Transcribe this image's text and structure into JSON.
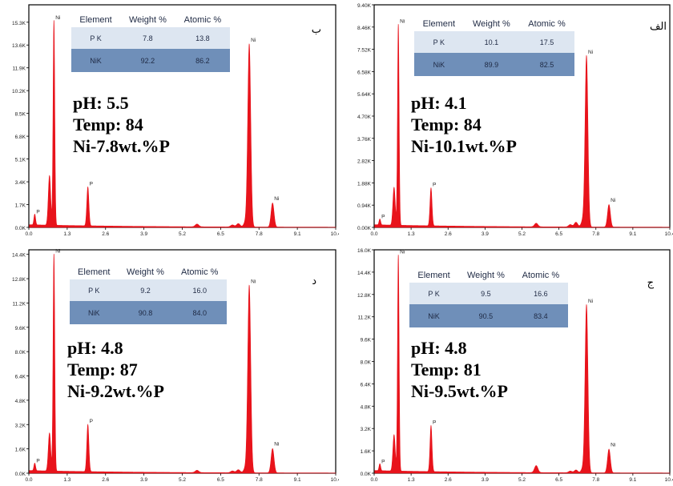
{
  "chart_data": [
    {
      "type": "line",
      "panel_label": "ب",
      "x_ticks": [
        "0.0",
        "1.3",
        "2.6",
        "3.9",
        "5.2",
        "6.5",
        "7.8",
        "9.1",
        "10.4"
      ],
      "y_ticks": [
        "0.0K",
        "1.7K",
        "3.4K",
        "5.1K",
        "6.8K",
        "8.5K",
        "10.2K",
        "11.9K",
        "13.6K",
        "15.3K"
      ],
      "xlim": [
        0,
        10.4
      ],
      "ylim": [
        0,
        16.6
      ],
      "peaks": [
        {
          "label": "P",
          "x": 0.2,
          "y": 0.8
        },
        {
          "label": "Ni",
          "x": 0.85,
          "y": 15.3
        },
        {
          "label": "P",
          "x": 2.0,
          "y": 2.9
        },
        {
          "label": "Ni",
          "x": 7.47,
          "y": 13.6
        },
        {
          "label": "Ni",
          "x": 8.26,
          "y": 1.8
        }
      ],
      "shoulders": [
        {
          "x": 0.7,
          "y": 3.7
        },
        {
          "x": 5.7,
          "y": 0.2
        },
        {
          "x": 6.9,
          "y": 0.15
        },
        {
          "x": 7.1,
          "y": 0.25
        },
        {
          "x": 7.35,
          "y": 0.4
        }
      ],
      "annotation": [
        "pH: 5.5",
        "Temp: 84",
        "Ni-7.8wt.%P"
      ],
      "table": {
        "headers": [
          "Element",
          "Weight %",
          "Atomic %"
        ],
        "rows": [
          [
            "P K",
            "7.8",
            "13.8"
          ],
          [
            "NiK",
            "92.2",
            "86.2"
          ]
        ]
      }
    },
    {
      "type": "line",
      "panel_label": "الف",
      "x_ticks": [
        "0.0",
        "1.3",
        "2.6",
        "3.9",
        "5.2",
        "6.5",
        "7.8",
        "9.1",
        "10.4"
      ],
      "y_ticks": [
        "0.00K",
        "0.94K",
        "1.88K",
        "2.82K",
        "3.76K",
        "4.70K",
        "5.64K",
        "6.58K",
        "7.52K",
        "8.46K",
        "9.40K"
      ],
      "xlim": [
        0,
        10.4
      ],
      "ylim": [
        0,
        9.4
      ],
      "peaks": [
        {
          "label": "P",
          "x": 0.2,
          "y": 0.25
        },
        {
          "label": "Ni",
          "x": 0.85,
          "y": 8.5
        },
        {
          "label": "P",
          "x": 2.0,
          "y": 1.6
        },
        {
          "label": "Ni",
          "x": 7.47,
          "y": 7.2
        },
        {
          "label": "Ni",
          "x": 8.26,
          "y": 0.95
        }
      ],
      "shoulders": [
        {
          "x": 0.7,
          "y": 1.6
        },
        {
          "x": 5.7,
          "y": 0.15
        },
        {
          "x": 6.9,
          "y": 0.1
        },
        {
          "x": 7.1,
          "y": 0.2
        },
        {
          "x": 7.35,
          "y": 0.3
        }
      ],
      "annotation": [
        "pH: 4.1",
        "Temp: 84",
        "Ni-10.1wt.%P"
      ],
      "table": {
        "headers": [
          "Element",
          "Weight %",
          "Atomic %"
        ],
        "rows": [
          [
            "P K",
            "10.1",
            "17.5"
          ],
          [
            "NiK",
            "89.9",
            "82.5"
          ]
        ]
      }
    },
    {
      "type": "line",
      "panel_label": "د",
      "x_ticks": [
        "0.0",
        "1.3",
        "2.6",
        "3.9",
        "5.2",
        "6.5",
        "7.8",
        "9.1",
        "10.4"
      ],
      "y_ticks": [
        "0.0K",
        "1.6K",
        "3.2K",
        "4.8K",
        "6.4K",
        "8.0K",
        "9.6K",
        "11.2K",
        "12.8K",
        "14.4K"
      ],
      "xlim": [
        0,
        10.4
      ],
      "ylim": [
        0,
        14.7
      ],
      "peaks": [
        {
          "label": "P",
          "x": 0.2,
          "y": 0.5
        },
        {
          "label": "Ni",
          "x": 0.85,
          "y": 14.3
        },
        {
          "label": "P",
          "x": 2.0,
          "y": 3.1
        },
        {
          "label": "Ni",
          "x": 7.47,
          "y": 12.3
        },
        {
          "label": "Ni",
          "x": 8.26,
          "y": 1.6
        }
      ],
      "shoulders": [
        {
          "x": 0.7,
          "y": 2.5
        },
        {
          "x": 5.7,
          "y": 0.15
        },
        {
          "x": 6.9,
          "y": 0.12
        },
        {
          "x": 7.1,
          "y": 0.2
        },
        {
          "x": 7.35,
          "y": 0.35
        }
      ],
      "annotation": [
        "pH: 4.8",
        "Temp: 87",
        "Ni-9.2wt.%P"
      ],
      "table": {
        "headers": [
          "Element",
          "Weight %",
          "Atomic %"
        ],
        "rows": [
          [
            "P K",
            "9.2",
            "16.0"
          ],
          [
            "NiK",
            "90.8",
            "84.0"
          ]
        ]
      }
    },
    {
      "type": "line",
      "panel_label": "ج",
      "x_ticks": [
        "0.0",
        "1.3",
        "2.6",
        "3.9",
        "5.2",
        "6.5",
        "7.8",
        "9.1",
        "10.4"
      ],
      "y_ticks": [
        "0.0K",
        "1.6K",
        "3.2K",
        "4.8K",
        "6.4K",
        "8.0K",
        "9.6K",
        "11.2K",
        "12.8K",
        "14.4K",
        "16.0K"
      ],
      "xlim": [
        0,
        10.4
      ],
      "ylim": [
        0,
        16.0
      ],
      "peaks": [
        {
          "label": "P",
          "x": 0.2,
          "y": 0.5
        },
        {
          "label": "Ni",
          "x": 0.85,
          "y": 15.5
        },
        {
          "label": "P",
          "x": 2.0,
          "y": 3.3
        },
        {
          "label": "Ni",
          "x": 7.47,
          "y": 12.0
        },
        {
          "label": "Ni",
          "x": 8.26,
          "y": 1.7
        }
      ],
      "shoulders": [
        {
          "x": 0.7,
          "y": 2.6
        },
        {
          "x": 5.7,
          "y": 0.5
        },
        {
          "x": 6.9,
          "y": 0.12
        },
        {
          "x": 7.1,
          "y": 0.2
        },
        {
          "x": 7.35,
          "y": 0.35
        }
      ],
      "annotation": [
        "pH: 4.8",
        "Temp: 81",
        "Ni-9.5wt.%P"
      ],
      "table": {
        "headers": [
          "Element",
          "Weight %",
          "Atomic %"
        ],
        "rows": [
          [
            "P K",
            "9.5",
            "16.6"
          ],
          [
            "NiK",
            "90.5",
            "83.4"
          ]
        ]
      }
    }
  ],
  "colors": {
    "spectrum": "#e8131b",
    "table_light": "#dde6f1",
    "table_dark": "#6f8fb9",
    "frame": "#000000"
  }
}
